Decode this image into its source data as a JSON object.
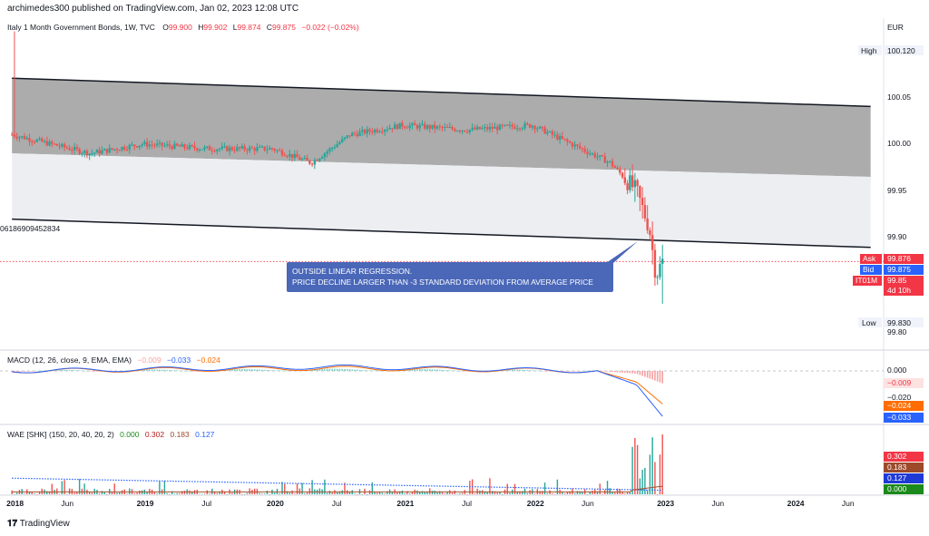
{
  "header": {
    "publish_line": "archimedes300 published on TradingView.com, Jan 02, 2023 12:08 UTC",
    "symbol": "Italy 1 Month Government Bonds, 1W, TVC",
    "o_label": "O",
    "o_value": "99.900",
    "h_label": "H",
    "h_value": "99.902",
    "l_label": "L",
    "l_value": "99.874",
    "c_label": "C",
    "c_value": "99.875",
    "change": "−0.022 (−0.02%)",
    "currency": "EUR"
  },
  "main_axis": {
    "ticks": [
      "100.05",
      "100.00",
      "99.95",
      "99.90",
      "99.80"
    ],
    "high_label": "High",
    "high_value": "100.120",
    "low_label": "Low",
    "low_value": "99.830",
    "ask_label": "Ask",
    "ask_value": "99.876",
    "bid_label": "Bid",
    "bid_value": "99.875",
    "symbol_tag": "IT01M",
    "last_value": "99.85",
    "countdown": "4d 10h"
  },
  "regression_label": "06186909452834",
  "annotation": {
    "line1": "OUTSIDE LINEAR REGRESSION.",
    "line2": "PRICE DECLINE LARGER THAN -3 STANDARD DEVIATION FROM AVERAGE PRICE"
  },
  "macd": {
    "legend_name": "MACD (12, 26, close, 9, EMA, EMA)",
    "hist_value": "−0.009",
    "macd_value": "−0.033",
    "signal_value": "−0.024",
    "axis_zero": "0.000",
    "axis_low": "−0.020",
    "tag_hist": "−0.009",
    "tag_signal": "−0.024",
    "tag_macd": "−0.033"
  },
  "wae": {
    "legend_name": "WAE [SHK] (150, 20, 40, 20, 2)",
    "v1": "0.000",
    "v2": "0.302",
    "v3": "0.183",
    "v4": "0.127",
    "tags": [
      "0.302",
      "0.183",
      "0.127",
      "0.000"
    ]
  },
  "time_axis": [
    "2018",
    "Jun",
    "2019",
    "Jul",
    "2020",
    "Jul",
    "2021",
    "Jul",
    "2022",
    "Jun",
    "2023",
    "Jun",
    "2024",
    "Jun"
  ],
  "brand": "TradingView",
  "colors": {
    "up": "#26a69a",
    "down": "#ef5350",
    "macd": "#2962ff",
    "signal": "#ff6d00",
    "channel_upper": "#9e9e9e",
    "channel_lower": "#f0f1f3",
    "annotation_bg": "#4a67b8",
    "tag_red": "#f23645",
    "tag_blue": "#2962ff",
    "tag_dark_red": "#b71c1c",
    "tag_brown": "#9c4a2a",
    "tag_green": "#1b8a1b"
  },
  "chart_data": {
    "type": "candlestick",
    "panes": [
      "price",
      "MACD",
      "WAE"
    ],
    "price_ticks": [
      100.05,
      100.0,
      99.95,
      99.9,
      99.8
    ],
    "high": 100.12,
    "low": 99.83,
    "last": {
      "open": 99.9,
      "high": 99.902,
      "low": 99.874,
      "close": 99.875
    },
    "regression_channel": {
      "upper": [
        [
          2018.0,
          100.07
        ],
        [
          2024.6,
          100.04
        ]
      ],
      "middle": [
        [
          2018.0,
          99.99
        ],
        [
          2024.6,
          99.965
        ]
      ],
      "lower": [
        [
          2018.0,
          99.92
        ],
        [
          2024.6,
          99.89
        ]
      ]
    },
    "price_series": [
      [
        2018.0,
        100.01
      ],
      [
        2018.3,
        100.0
      ],
      [
        2018.6,
        99.99
      ],
      [
        2019.0,
        100.0
      ],
      [
        2019.5,
        99.995
      ],
      [
        2020.0,
        99.995
      ],
      [
        2020.3,
        99.98
      ],
      [
        2020.6,
        100.01
      ],
      [
        2021.0,
        100.02
      ],
      [
        2021.5,
        100.015
      ],
      [
        2022.0,
        100.02
      ],
      [
        2022.3,
        100.0
      ],
      [
        2022.6,
        99.98
      ],
      [
        2022.8,
        99.95
      ],
      [
        2022.9,
        99.91
      ],
      [
        2022.95,
        99.86
      ],
      [
        2023.0,
        99.875
      ]
    ],
    "macd_series": [
      [
        2018.0,
        0.0
      ],
      [
        2020.5,
        0.003
      ],
      [
        2022.5,
        0.0
      ],
      [
        2022.8,
        -0.01
      ],
      [
        2023.0,
        -0.033
      ]
    ],
    "signal_series": [
      [
        2018.0,
        0.0
      ],
      [
        2020.5,
        0.002
      ],
      [
        2022.5,
        0.0
      ],
      [
        2022.8,
        -0.008
      ],
      [
        2023.0,
        -0.024
      ]
    ],
    "wae": {
      "explosion": 0.302,
      "trend": 0.183,
      "deadzone": 0.127,
      "zero": 0.0
    },
    "x_range": [
      2017.95,
      2024.7
    ]
  }
}
